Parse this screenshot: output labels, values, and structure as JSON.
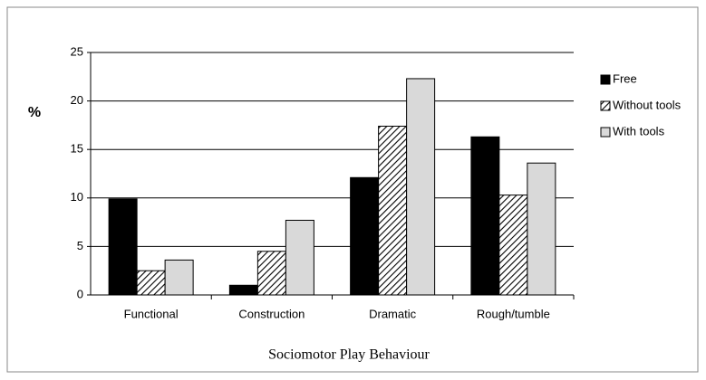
{
  "chart_data": {
    "type": "bar",
    "y_label": "%",
    "x_label": "Sociomotor Play Behaviour",
    "categories": [
      "Functional",
      "Construction",
      "Dramatic",
      "Rough/tumble"
    ],
    "series": [
      {
        "name": "Free",
        "color": "#000000",
        "values": [
          9.9,
          1.0,
          12.1,
          16.3
        ]
      },
      {
        "name": "Without tools",
        "color": "#000000",
        "pattern": "hatch",
        "values": [
          2.5,
          4.5,
          17.4,
          10.3
        ]
      },
      {
        "name": "With tools",
        "color": "#d9d9d9",
        "values": [
          3.6,
          7.7,
          22.3,
          13.6
        ]
      }
    ],
    "ylim": [
      0,
      25
    ],
    "yticks": [
      0,
      5,
      10,
      15,
      20,
      25
    ],
    "grid": true,
    "legend": "right"
  }
}
